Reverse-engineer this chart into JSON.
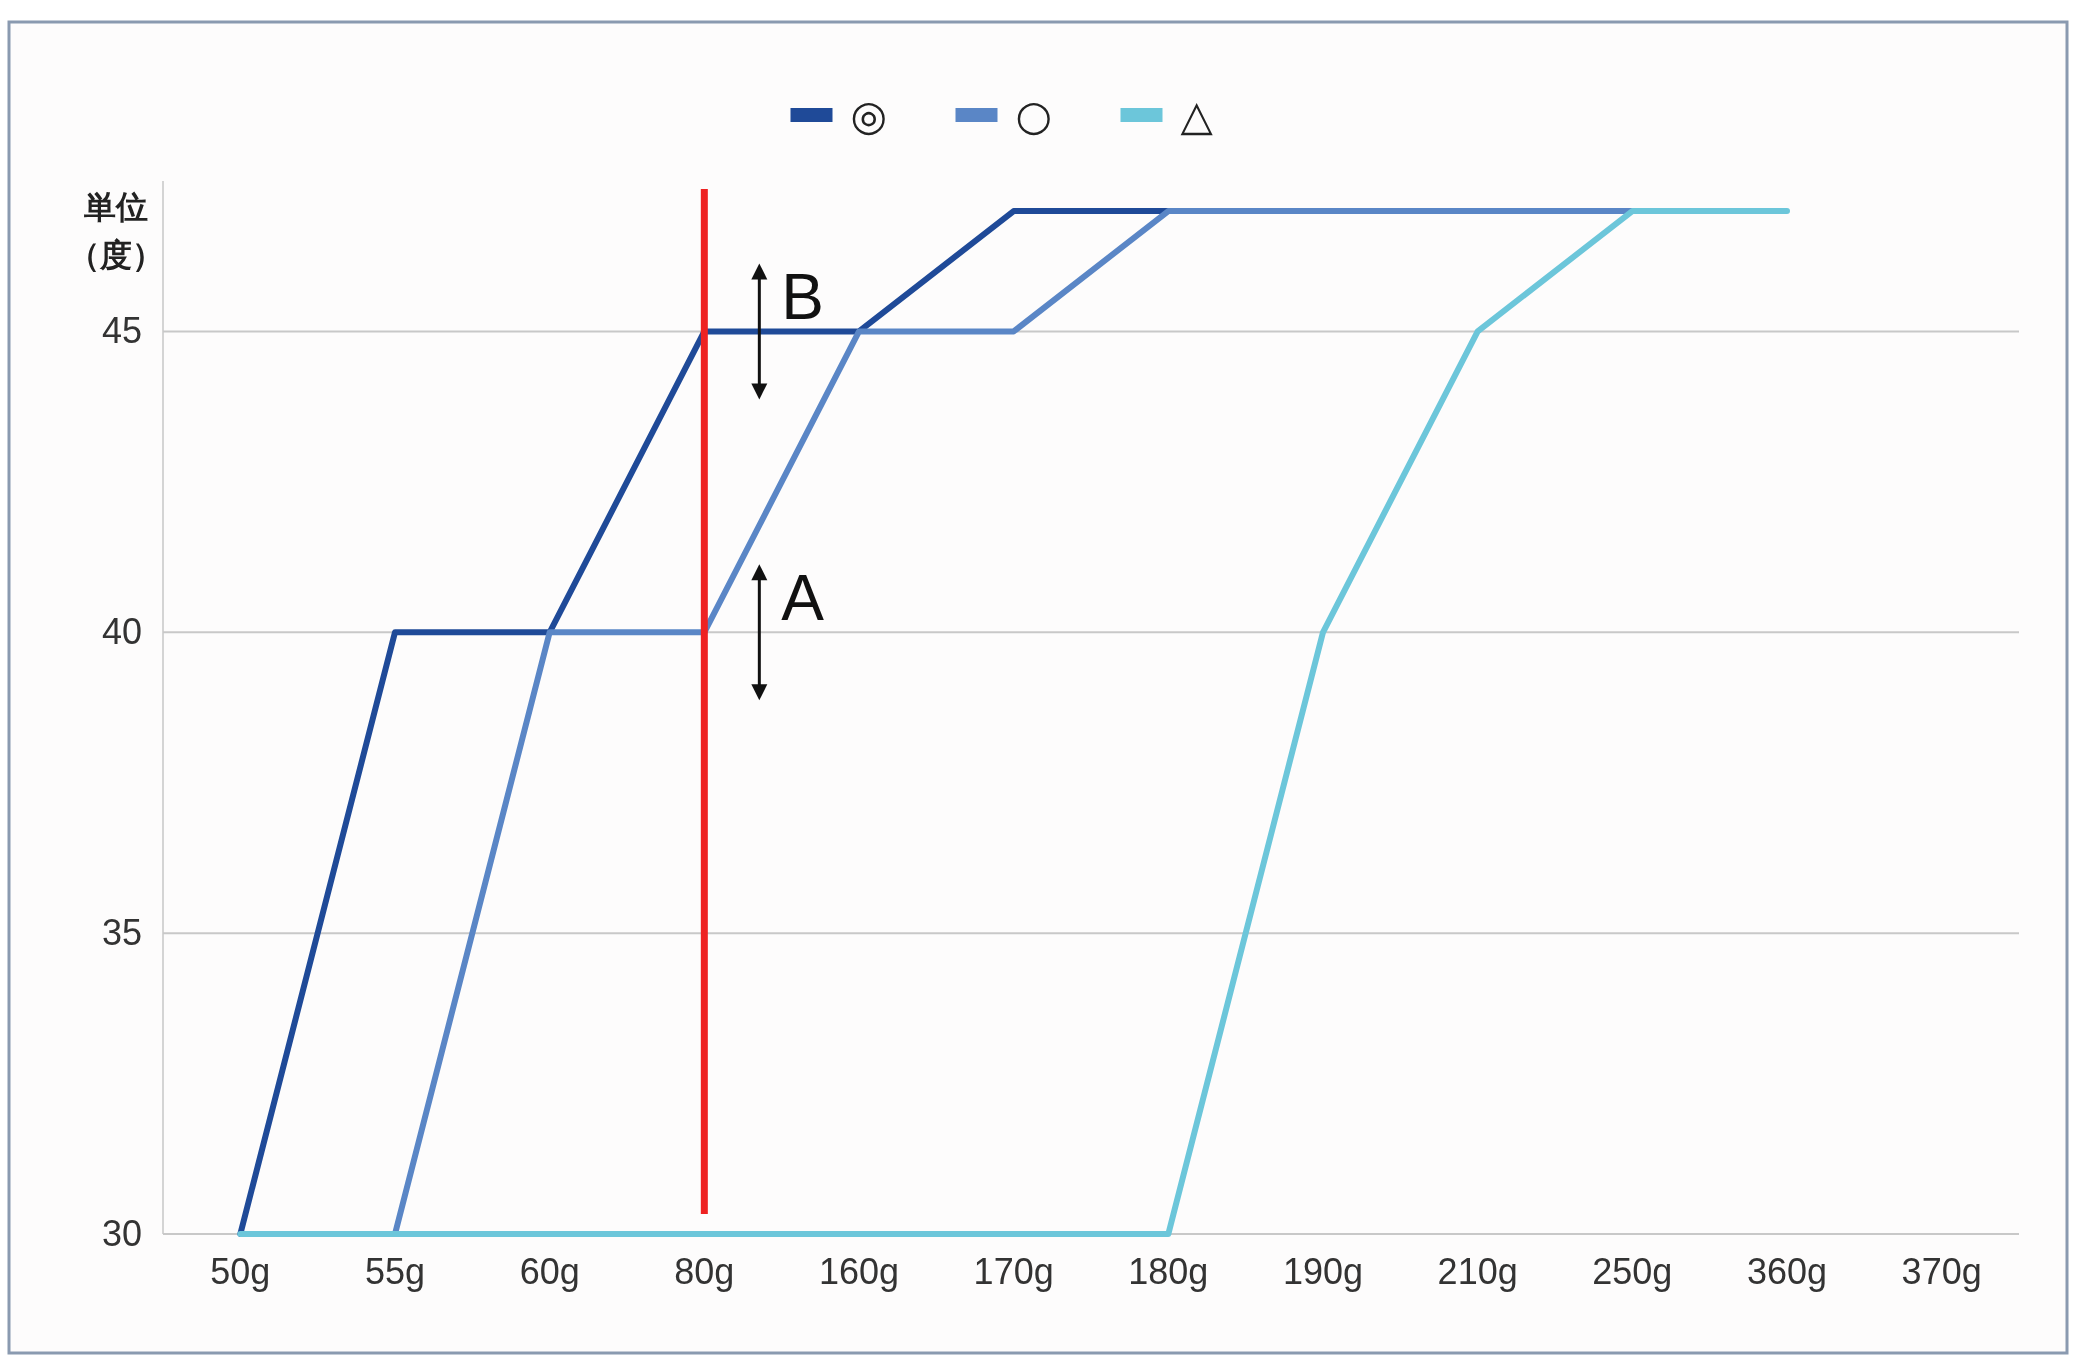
{
  "chart_data": {
    "type": "line",
    "ylabel": "単位（度）",
    "categories": [
      "50g",
      "55g",
      "60g",
      "80g",
      "160g",
      "170g",
      "180g",
      "190g",
      "210g",
      "250g",
      "360g",
      "370g"
    ],
    "series": [
      {
        "name": "◎",
        "color": "#1f4a98",
        "values": [
          30,
          40,
          40,
          45,
          45,
          47,
          47,
          null,
          null,
          null,
          null,
          null
        ]
      },
      {
        "name": "○",
        "color": "#5a86c6",
        "values": [
          null,
          30,
          40,
          40,
          45,
          45,
          47,
          47,
          47,
          47,
          null,
          null
        ]
      },
      {
        "name": "△",
        "color": "#6cc6da",
        "values": [
          30,
          30,
          30,
          30,
          30,
          30,
          30,
          40,
          45,
          47,
          47,
          null
        ]
      }
    ],
    "ylim": [
      30,
      47.5
    ],
    "yticks": [
      30,
      35,
      40,
      45
    ],
    "grid": "y",
    "legend": "top",
    "ref_lines": [
      {
        "axis": "x",
        "value": "80g",
        "color": "#ee2222"
      }
    ],
    "annotations": [
      {
        "text": "A",
        "x": "80g",
        "y": 40
      },
      {
        "text": "B",
        "x": "80g",
        "y": 45
      }
    ]
  }
}
